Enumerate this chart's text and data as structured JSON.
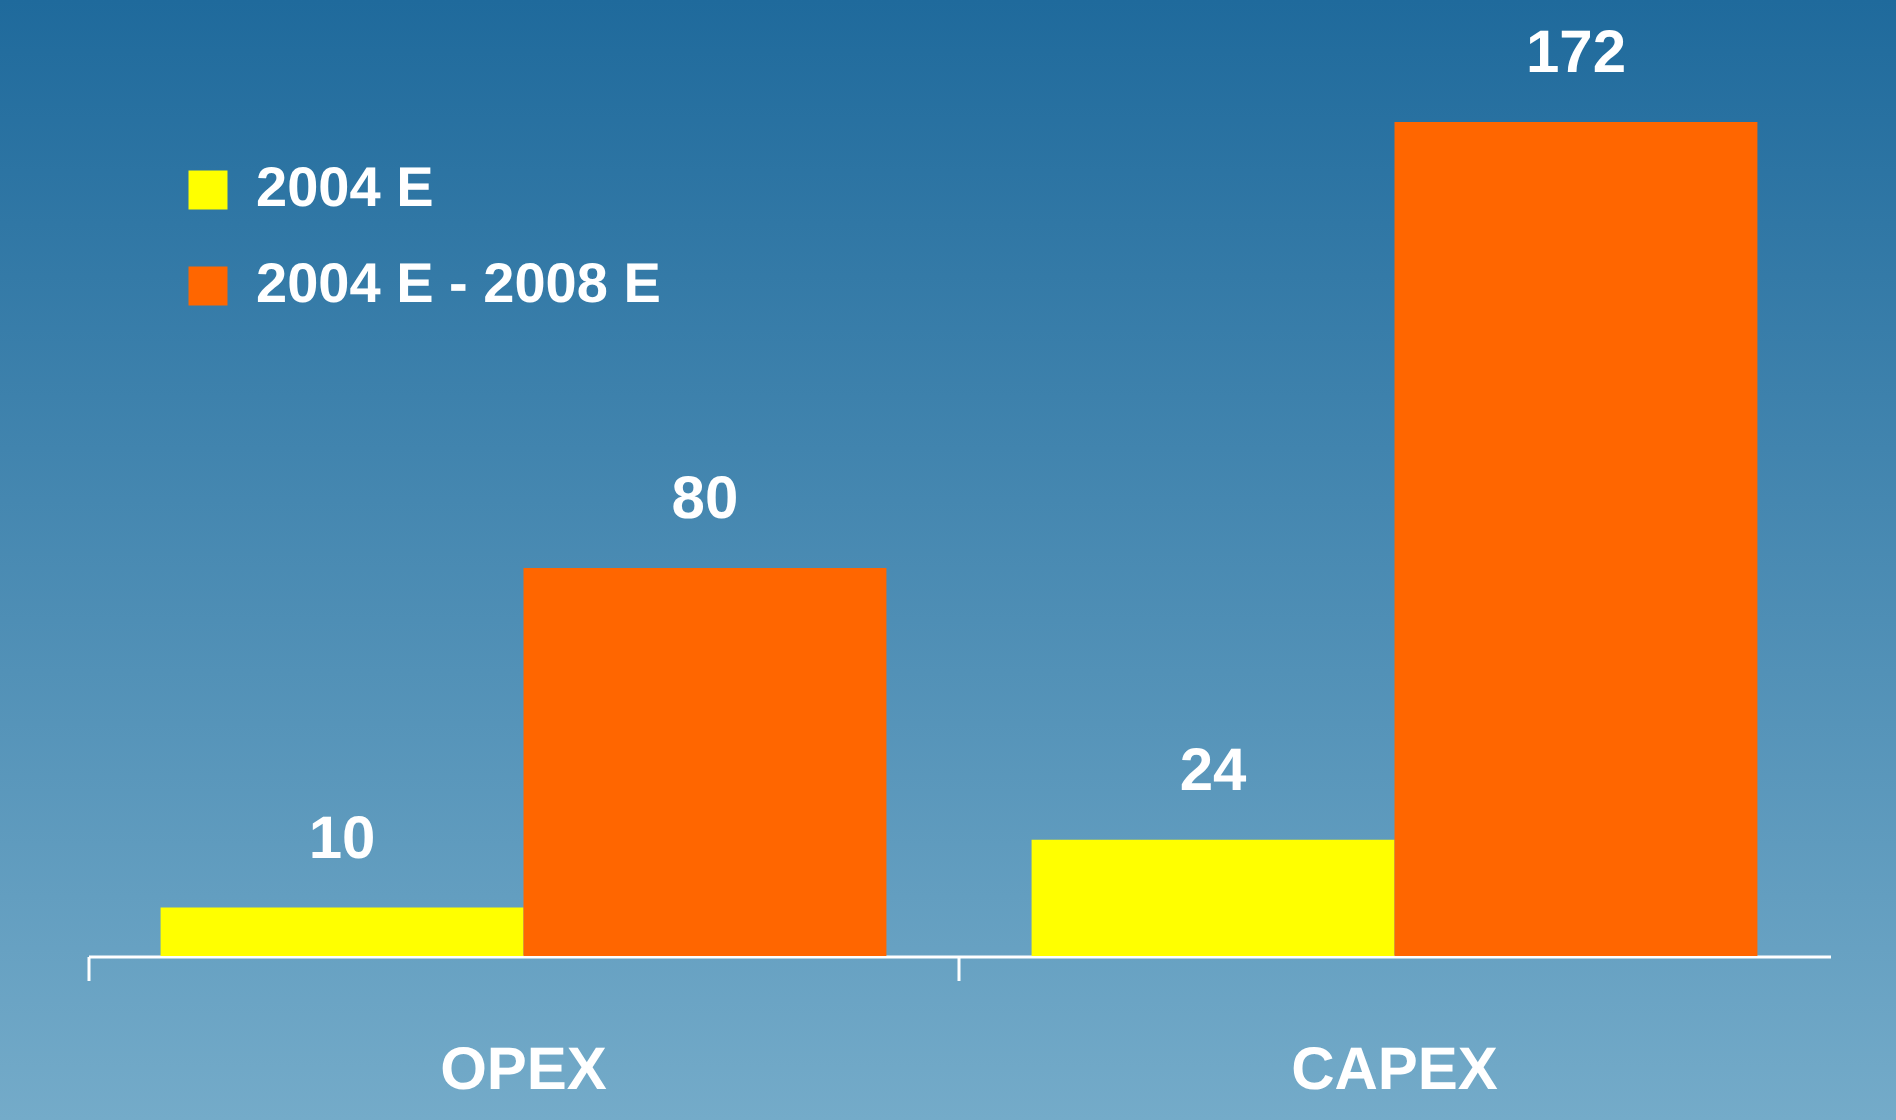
{
  "chart_data": {
    "type": "bar",
    "categories": [
      "OPEX",
      "CAPEX"
    ],
    "series": [
      {
        "name": "2004 E",
        "color": "#ffff00",
        "values": [
          10,
          24
        ]
      },
      {
        "name": "2004 E - 2008 E",
        "color": "#ff6600",
        "values": [
          80,
          172
        ]
      }
    ],
    "data_labels": true,
    "legend": "top left",
    "grid": false
  }
}
